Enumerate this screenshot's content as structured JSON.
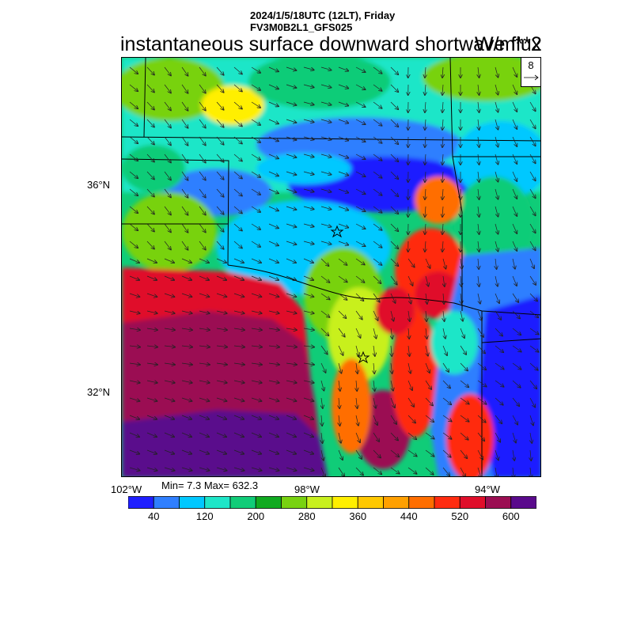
{
  "header": {
    "datetime_line": "2024/1/5/18UTC (12LT), Friday",
    "model_line": "FV3M0B2L1_GFS025"
  },
  "title": "instantaneous surface downward shortwave flux",
  "units": "W/m**2",
  "vector_reference": {
    "value": "8"
  },
  "axes": {
    "lat_labels": [
      "36°N",
      "32°N"
    ],
    "lon_labels": [
      "102°W",
      "98°W",
      "94°W"
    ]
  },
  "stats": "Min= 7.3 Max= 632.3",
  "colorbar": {
    "colors": [
      "#1f1fff",
      "#2f7fff",
      "#00c8ff",
      "#1ee6c8",
      "#10cc78",
      "#10aa20",
      "#78d210",
      "#c8f01e",
      "#ffef00",
      "#ffc800",
      "#ffa000",
      "#ff6e00",
      "#ff2c10",
      "#e00e2a",
      "#9b0e52",
      "#5a0a8c"
    ],
    "labels": [
      "40",
      "120",
      "200",
      "280",
      "360",
      "440",
      "520",
      "600"
    ]
  }
}
